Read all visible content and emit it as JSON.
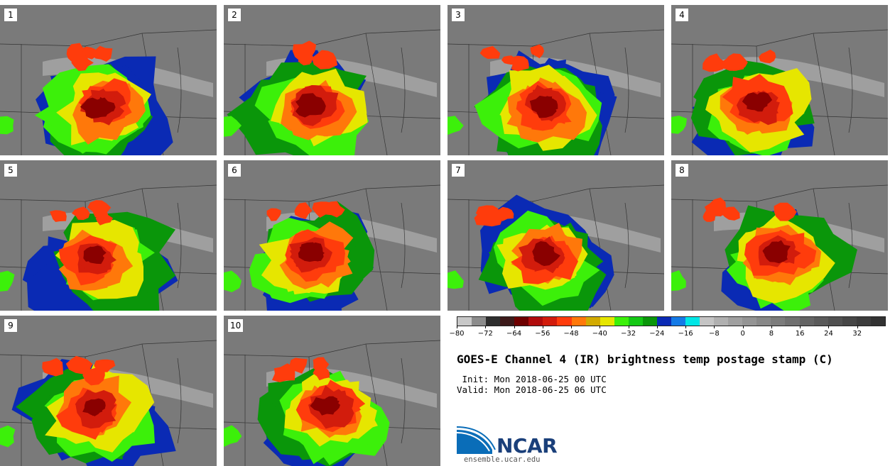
{
  "panels": [
    {
      "label": "1"
    },
    {
      "label": "2"
    },
    {
      "label": "3"
    },
    {
      "label": "4"
    },
    {
      "label": "5"
    },
    {
      "label": "6"
    },
    {
      "label": "7"
    },
    {
      "label": "8"
    },
    {
      "label": "9"
    },
    {
      "label": "10"
    }
  ],
  "colorbar": {
    "colors": [
      "#c8c8c8",
      "#8c8c8c",
      "#2e2e2e",
      "#3c1a1a",
      "#6e0000",
      "#b00c0c",
      "#d21c0c",
      "#ff3c0c",
      "#ff780a",
      "#d2aa00",
      "#e6e600",
      "#3cf00a",
      "#14c814",
      "#0a960a",
      "#0a2ab4",
      "#147ae6",
      "#00e6e6",
      "#c4c4c4",
      "#b0b0b0",
      "#a0a0a0",
      "#949494",
      "#888888",
      "#7c7c7c",
      "#707070",
      "#646464",
      "#5a5a5a",
      "#505050",
      "#464646",
      "#3c3c3c",
      "#323232"
    ],
    "labels": [
      "−80",
      "−72",
      "−64",
      "−56",
      "−48",
      "−40",
      "−32",
      "−24",
      "−16",
      "−8",
      "0",
      "8",
      "16",
      "24",
      "32"
    ]
  },
  "title": "GOES-E Channel 4 (IR) brightness temp postage stamp (C)",
  "init_text": " Init: Mon 2018-06-25 00 UTC",
  "valid_text": "Valid: Mon 2018-06-25 06 UTC",
  "logo_text": "NCAR",
  "url": "ensemble.ucar.edu"
}
